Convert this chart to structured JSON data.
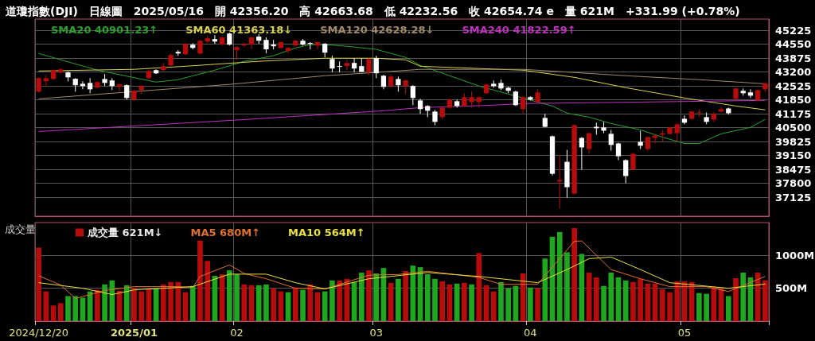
{
  "chart_data": [
    {
      "type": "candlestick",
      "title": "道瓊指數(DJI)　日線圖　2025/05/16　開 42356.20　高 42663.68　低 42232.56　收 42654.74 e　量 621M　+331.99 (+0.78%)",
      "categories": [
        "2024/12/20",
        null,
        null,
        null,
        null,
        null,
        null,
        null,
        null,
        null,
        null,
        null,
        null,
        "2025/01",
        null,
        null,
        null,
        null,
        null,
        null,
        null,
        null,
        null,
        null,
        null,
        null,
        null,
        "02",
        null,
        null,
        null,
        null,
        null,
        null,
        null,
        null,
        null,
        null,
        null,
        null,
        null,
        null,
        null,
        null,
        null,
        null,
        "03",
        null,
        null,
        null,
        null,
        null,
        null,
        null,
        null,
        null,
        null,
        null,
        null,
        null,
        null,
        null,
        null,
        null,
        null,
        null,
        null,
        "04",
        null,
        null,
        null,
        null,
        null,
        null,
        null,
        null,
        null,
        null,
        null,
        null,
        null,
        null,
        null,
        null,
        null,
        null,
        null,
        null,
        "05",
        null,
        null,
        null,
        null,
        null,
        null,
        null,
        null,
        null,
        null,
        null
      ],
      "ylim": [
        36200,
        45770
      ],
      "yticks": [
        37125,
        37800,
        38475,
        39150,
        39825,
        40500,
        41175,
        41850,
        42525,
        43200,
        43875,
        44550,
        45225
      ],
      "grid": true,
      "legend": "top left",
      "tick_labels": "y",
      "marker": "none",
      "series": [
        {
          "colors": [
            "#b80c0c",
            "#b80c0c",
            "#b80c0c",
            "#b80c0c",
            "#ffffff",
            "#ffffff",
            "#ffffff",
            "#ffffff",
            "#b80c0c",
            "#ffffff",
            "#ffffff",
            "#b80c0c",
            "#ffffff",
            "#b80c0c",
            "#b80c0c",
            "#b80c0c",
            "#ffffff",
            "#b80c0c",
            "#b80c0c",
            "#ffffff",
            "#b80c0c",
            "#ffffff",
            "#b80c0c",
            "#b80c0c",
            "#ffffff",
            "#b80c0c",
            "#ffffff",
            "#b80c0c",
            "#b80c0c",
            "#b80c0c",
            "#ffffff",
            "#ffffff",
            "#ffffff",
            "#b80c0c",
            "#b80c0c",
            "#b80c0c",
            "#ffffff",
            "#ffffff",
            "#b80c0c",
            "#ffffff",
            "#ffffff",
            "#ffffff",
            "#b80c0c",
            "#ffffff",
            "#ffffff",
            "#b80c0c",
            "#ffffff",
            "#ffffff",
            "#b80c0c",
            "#ffffff",
            "#b80c0c",
            "#ffffff",
            "#ffffff",
            "#ffffff",
            "#ffffff",
            "#b80c0c",
            "#b80c0c",
            "#ffffff",
            "#b80c0c",
            "#b80c0c",
            "#b80c0c",
            "#b80c0c",
            "#ffffff",
            "#ffffff",
            "#ffffff",
            "#ffffff",
            "#b80c0c",
            "#ffffff",
            "#b80c0c",
            "#ffffff",
            "#ffffff",
            "#b80c0c",
            "#ffffff",
            "#b80c0c",
            "#ffffff",
            "#b80c0c",
            "#ffffff",
            "#ffffff",
            "#ffffff",
            "#ffffff",
            "#ffffff",
            "#b80c0c",
            "#ffffff",
            "#b80c0c",
            "#b80c0c",
            "#b80c0c",
            "#b80c0c",
            "#b80c0c",
            "#ffffff",
            "#b80c0c",
            "#b80c0c",
            "#ffffff",
            "#b80c0c",
            "#b80c0c",
            "#ffffff",
            "#b80c0c",
            "#ffffff",
            "#ffffff",
            "#b80c0c",
            "#b80c0c"
          ],
          "ohlc": [
            [
              42247,
              42943,
              42208,
              42904
            ],
            [
              42750,
              43060,
              42520,
              42900
            ],
            [
              42860,
              43330,
              42830,
              43290
            ],
            [
              43170,
              43370,
              43130,
              43330
            ],
            [
              43180,
              43220,
              42750,
              42940
            ],
            [
              42870,
              42900,
              42250,
              42560
            ],
            [
              42630,
              42750,
              42360,
              42520
            ],
            [
              42670,
              42900,
              42170,
              42360
            ],
            [
              42440,
              42750,
              42400,
              42710
            ],
            [
              42860,
              43100,
              42520,
              42670
            ],
            [
              42790,
              42900,
              42330,
              42520
            ],
            [
              42480,
              42630,
              42250,
              42600
            ],
            [
              42560,
              42600,
              41860,
              41940
            ],
            [
              41860,
              42330,
              41800,
              42290
            ],
            [
              42330,
              42560,
              42130,
              42520
            ],
            [
              42900,
              43290,
              42860,
              43250
            ],
            [
              43290,
              43330,
              43100,
              43140
            ],
            [
              43290,
              43640,
              43250,
              43480
            ],
            [
              43520,
              44100,
              43480,
              44020
            ],
            [
              44180,
              44260,
              43990,
              44100
            ],
            [
              44060,
              44600,
              44020,
              44570
            ],
            [
              44530,
              44600,
              44300,
              44370
            ],
            [
              44100,
              44760,
              44060,
              44720
            ],
            [
              44680,
              44950,
              44610,
              44840
            ],
            [
              44800,
              44990,
              44570,
              44680
            ],
            [
              44530,
              44920,
              44490,
              44880
            ],
            [
              45070,
              45110,
              44490,
              44530
            ],
            [
              44260,
              44450,
              43790,
              44410
            ],
            [
              44490,
              44610,
              44410,
              44570
            ],
            [
              44530,
              44920,
              44300,
              44880
            ],
            [
              44920,
              45030,
              44570,
              44720
            ],
            [
              44760,
              44880,
              44110,
              44300
            ],
            [
              44530,
              44760,
              44300,
              44450
            ],
            [
              44370,
              44680,
              44330,
              44650
            ],
            [
              44220,
              44410,
              44100,
              44370
            ],
            [
              44490,
              44760,
              44450,
              44720
            ],
            [
              44720,
              44800,
              44490,
              44530
            ],
            [
              44610,
              44650,
              44300,
              44570
            ],
            [
              44490,
              44680,
              44300,
              44650
            ],
            [
              44570,
              44610,
              43910,
              44140
            ],
            [
              43830,
              43990,
              43180,
              43370
            ],
            [
              43490,
              43720,
              43180,
              43450
            ],
            [
              43490,
              43790,
              43290,
              43640
            ],
            [
              43640,
              43870,
              43180,
              43370
            ],
            [
              43490,
              43870,
              43210,
              43210
            ],
            [
              43180,
              43870,
              43060,
              43830
            ],
            [
              43870,
              43990,
              42900,
              43140
            ],
            [
              43020,
              43060,
              42360,
              42480
            ],
            [
              42520,
              43060,
              42440,
              42980
            ],
            [
              42860,
              42980,
              42250,
              42560
            ],
            [
              42520,
              42830,
              42130,
              42790
            ],
            [
              42520,
              42560,
              41590,
              41940
            ],
            [
              41820,
              41900,
              41170,
              41400
            ],
            [
              41550,
              41590,
              41010,
              41320
            ],
            [
              41280,
              41360,
              40620,
              40780
            ],
            [
              41010,
              41510,
              40890,
              41470
            ],
            [
              41470,
              41900,
              41430,
              41860
            ],
            [
              41780,
              41860,
              41470,
              41550
            ],
            [
              41550,
              42170,
              41510,
              41980
            ],
            [
              41740,
              42250,
              41470,
              41980
            ],
            [
              41740,
              42020,
              41470,
              41980
            ],
            [
              42170,
              42630,
              42130,
              42590
            ],
            [
              42630,
              42790,
              42440,
              42520
            ],
            [
              42670,
              42830,
              42330,
              42400
            ],
            [
              42440,
              42480,
              42170,
              42290
            ],
            [
              42250,
              42290,
              41550,
              41590
            ],
            [
              41400,
              42020,
              41170,
              41980
            ],
            [
              41980,
              42020,
              41820,
              41860
            ],
            [
              41740,
              42360,
              41700,
              42210
            ],
            [
              40970,
              41170,
              40510,
              40540
            ],
            [
              40080,
              40120,
              38180,
              38260
            ],
            [
              37880,
              39150,
              36560,
              37960
            ],
            [
              38840,
              39420,
              37100,
              37610
            ],
            [
              37300,
              40660,
              37260,
              40620
            ],
            [
              40000,
              40040,
              38460,
              39540
            ],
            [
              39460,
              40270,
              39230,
              40230
            ],
            [
              40540,
              40740,
              40160,
              40470
            ],
            [
              40510,
              40780,
              40230,
              40350
            ],
            [
              40200,
              40390,
              39380,
              39660
            ],
            [
              39730,
              39770,
              38920,
              39110
            ],
            [
              38920,
              38960,
              37800,
              38150
            ],
            [
              38460,
              39270,
              38420,
              39230
            ],
            [
              39810,
              40350,
              39460,
              39620
            ],
            [
              39460,
              40080,
              39350,
              40040
            ],
            [
              40000,
              40160,
              39730,
              40120
            ],
            [
              40160,
              40390,
              39810,
              40230
            ],
            [
              40200,
              40540,
              40160,
              40510
            ],
            [
              40230,
              40700,
              39810,
              40660
            ],
            [
              40930,
              41090,
              40660,
              40740
            ],
            [
              40930,
              41320,
              40890,
              41280
            ],
            [
              41200,
              41400,
              41010,
              41240
            ],
            [
              41010,
              41240,
              40660,
              40780
            ],
            [
              40890,
              41240,
              40780,
              41170
            ],
            [
              41280,
              41510,
              41240,
              41400
            ],
            [
              41430,
              41470,
              41130,
              41200
            ],
            [
              41900,
              42440,
              41860,
              42400
            ],
            [
              42290,
              42400,
              42050,
              42170
            ],
            [
              42210,
              42360,
              41940,
              42050
            ],
            [
              41820,
              42360,
              41790,
              42320
            ],
            [
              42356.2,
              42663.68,
              42232.56,
              42654.74
            ]
          ]
        },
        {
          "type": "line",
          "name": "SMA20 40901.23↑",
          "color": "#2ca02c",
          "values": [
            44100,
            null,
            null,
            null,
            null,
            null,
            null,
            null,
            43290,
            null,
            null,
            null,
            null,
            null,
            null,
            null,
            42710,
            null,
            null,
            42830,
            null,
            null,
            null,
            null,
            43290,
            null,
            null,
            null,
            43720,
            null,
            null,
            null,
            43990,
            null,
            null,
            44370,
            null,
            44530,
            null,
            44530,
            null,
            null,
            44450,
            null,
            null,
            null,
            44300,
            null,
            null,
            null,
            43910,
            null,
            43520,
            null,
            null,
            null,
            43020,
            null,
            null,
            null,
            42520,
            null,
            null,
            null,
            42130,
            null,
            null,
            null,
            41740,
            null,
            41550,
            null,
            41200,
            null,
            null,
            41010,
            null,
            null,
            40700,
            null,
            null,
            null,
            40390,
            null,
            null,
            40040,
            null,
            null,
            39730,
            null,
            39730,
            null,
            null,
            40200,
            null,
            null,
            null,
            40510,
            null,
            40901.23
          ]
        },
        {
          "type": "line",
          "name": "SMA60 41363.18↓",
          "color": "#d8d050",
          "values": [
            43250,
            null,
            null,
            null,
            null,
            null,
            null,
            null,
            null,
            null,
            null,
            null,
            null,
            43330,
            null,
            null,
            null,
            null,
            null,
            null,
            43480,
            null,
            null,
            null,
            null,
            null,
            null,
            null,
            null,
            null,
            43720,
            null,
            null,
            null,
            null,
            null,
            null,
            null,
            null,
            43870,
            null,
            null,
            null,
            null,
            null,
            null,
            43870,
            null,
            null,
            null,
            43790,
            null,
            43480,
            null,
            null,
            null,
            null,
            null,
            null,
            null,
            43370,
            null,
            null,
            null,
            null,
            null,
            43290,
            null,
            null,
            null,
            null,
            null,
            null,
            42940,
            null,
            null,
            null,
            null,
            null,
            null,
            42440,
            null,
            null,
            null,
            null,
            null,
            null,
            null,
            41940,
            null,
            null,
            null,
            null,
            null,
            null,
            41550,
            null,
            null,
            null,
            41363.18
          ]
        },
        {
          "type": "line",
          "name": "SMA120 42628.28↓",
          "color": "#a08868",
          "values": [
            41900,
            null,
            null,
            null,
            null,
            null,
            null,
            null,
            null,
            null,
            null,
            null,
            null,
            42250,
            null,
            null,
            null,
            null,
            null,
            null,
            null,
            null,
            null,
            null,
            null,
            null,
            42600,
            null,
            null,
            null,
            null,
            null,
            null,
            null,
            null,
            null,
            null,
            null,
            null,
            43020,
            null,
            null,
            null,
            null,
            null,
            null,
            43180,
            null,
            null,
            null,
            null,
            null,
            43330,
            null,
            null,
            null,
            null,
            null,
            null,
            null,
            null,
            null,
            null,
            null,
            null,
            null,
            43330,
            null,
            null,
            null,
            null,
            null,
            null,
            null,
            null,
            null,
            null,
            null,
            null,
            null,
            43020,
            null,
            null,
            null,
            null,
            null,
            null,
            null,
            null,
            null,
            42830,
            null,
            null,
            null,
            null,
            null,
            null,
            null,
            null,
            42628.28
          ]
        },
        {
          "type": "line",
          "name": "SMA240 41822.59↑",
          "color": "#c030c0",
          "values": [
            40310,
            null,
            null,
            null,
            null,
            null,
            null,
            null,
            null,
            null,
            null,
            null,
            null,
            40580,
            null,
            null,
            null,
            null,
            null,
            null,
            null,
            null,
            null,
            null,
            null,
            null,
            null,
            null,
            40890,
            null,
            null,
            null,
            null,
            null,
            null,
            null,
            null,
            null,
            null,
            null,
            null,
            null,
            null,
            null,
            null,
            null,
            null,
            41320,
            null,
            null,
            null,
            null,
            41470,
            null,
            null,
            null,
            null,
            null,
            null,
            null,
            null,
            null,
            41590,
            null,
            null,
            null,
            41670,
            null,
            null,
            null,
            null,
            null,
            null,
            null,
            null,
            null,
            null,
            null,
            null,
            null,
            null,
            null,
            41740,
            null,
            null,
            null,
            null,
            null,
            null,
            null,
            null,
            null,
            null,
            null,
            null,
            null,
            null,
            null,
            null,
            41822.59
          ]
        }
      ]
    },
    {
      "type": "bar",
      "ylabel": "成交量",
      "categories": [
        "2024/12/20",
        null,
        null,
        null,
        null,
        null,
        null,
        null,
        null,
        null,
        null,
        null,
        null,
        "2025/01",
        null,
        null,
        null,
        null,
        null,
        null,
        null,
        null,
        null,
        null,
        null,
        null,
        null,
        "02",
        null,
        null,
        null,
        null,
        null,
        null,
        null,
        null,
        null,
        null,
        null,
        null,
        null,
        null,
        null,
        null,
        null,
        null,
        "03",
        null,
        null,
        null,
        null,
        null,
        null,
        null,
        null,
        null,
        null,
        null,
        null,
        null,
        null,
        null,
        null,
        null,
        null,
        null,
        null,
        "04",
        null,
        null,
        null,
        null,
        null,
        null,
        null,
        null,
        null,
        null,
        null,
        null,
        null,
        null,
        null,
        null,
        null,
        null,
        null,
        null,
        "05",
        null,
        null,
        null,
        null,
        null,
        null,
        null,
        null,
        null,
        null,
        null
      ],
      "ylim": [
        0,
        1500
      ],
      "yticks": [
        {
          "value": 500,
          "label": "500M"
        },
        {
          "value": 1000,
          "label": "1000M"
        }
      ],
      "grid": true,
      "legend": "top left",
      "marker": "none",
      "series": [
        {
          "name": "成交量 621M↓",
          "values": [
            1119,
            452,
            238,
            274,
            381,
            381,
            357,
            452,
            476,
            559,
            619,
            464,
            547,
            500,
            452,
            488,
            500,
            559,
            595,
            595,
            440,
            536,
            1226,
            916,
            690,
            714,
            773,
            714,
            559,
            547,
            547,
            559,
            500,
            452,
            440,
            512,
            476,
            559,
            440,
            452,
            619,
            619,
            643,
            595,
            738,
            773,
            726,
            809,
            583,
            643,
            762,
            845,
            821,
            714,
            643,
            607,
            559,
            571,
            583,
            559,
            1035,
            547,
            452,
            595,
            500,
            536,
            726,
            512,
            500,
            952,
            1285,
            1357,
            1047,
            1416,
            1023,
            738,
            666,
            536,
            738,
            666,
            619,
            595,
            643,
            571,
            571,
            488,
            440,
            607,
            607,
            595,
            428,
            416,
            524,
            500,
            381,
            655,
            738,
            666,
            738,
            621
          ],
          "colors": [
            "#b80c0c",
            "#b80c0c",
            "#b80c0c",
            "#b80c0c",
            "#1fa81f",
            "#1fa81f",
            "#1fa81f",
            "#1fa81f",
            "#b80c0c",
            "#1fa81f",
            "#1fa81f",
            "#b80c0c",
            "#1fa81f",
            "#b80c0c",
            "#b80c0c",
            "#b80c0c",
            "#1fa81f",
            "#b80c0c",
            "#b80c0c",
            "#b80c0c",
            "#b80c0c",
            "#1fa81f",
            "#b80c0c",
            "#b80c0c",
            "#1fa81f",
            "#b80c0c",
            "#1fa81f",
            "#1fa81f",
            "#b80c0c",
            "#b80c0c",
            "#1fa81f",
            "#1fa81f",
            "#b80c0c",
            "#b80c0c",
            "#1fa81f",
            "#b80c0c",
            "#1fa81f",
            "#b80c0c",
            "#b80c0c",
            "#1fa81f",
            "#1fa81f",
            "#b80c0c",
            "#b80c0c",
            "#1fa81f",
            "#1fa81f",
            "#b80c0c",
            "#1fa81f",
            "#1fa81f",
            "#b80c0c",
            "#1fa81f",
            "#b80c0c",
            "#1fa81f",
            "#1fa81f",
            "#1fa81f",
            "#1fa81f",
            "#b80c0c",
            "#b80c0c",
            "#1fa81f",
            "#b80c0c",
            "#1fa81f",
            "#b80c0c",
            "#b80c0c",
            "#b80c0c",
            "#1fa81f",
            "#1fa81f",
            "#1fa81f",
            "#b80c0c",
            "#1fa81f",
            "#b80c0c",
            "#1fa81f",
            "#1fa81f",
            "#1fa81f",
            "#1fa81f",
            "#b80c0c",
            "#1fa81f",
            "#b80c0c",
            "#b80c0c",
            "#1fa81f",
            "#1fa81f",
            "#1fa81f",
            "#1fa81f",
            "#b80c0c",
            "#b80c0c",
            "#b80c0c",
            "#b80c0c",
            "#b80c0c",
            "#b80c0c",
            "#b80c0c",
            "#b80c0c",
            "#b80c0c",
            "#1fa81f",
            "#1fa81f",
            "#b80c0c",
            "#b80c0c",
            "#1fa81f",
            "#b80c0c",
            "#1fa81f",
            "#1fa81f",
            "#b80c0c",
            "#b80c0c"
          ]
        },
        {
          "type": "line",
          "name": "MA5 680M↑",
          "color": "#e07030",
          "values": [
            690,
            null,
            null,
            550,
            null,
            345,
            null,
            null,
            null,
            465,
            null,
            null,
            null,
            525,
            null,
            null,
            null,
            null,
            null,
            525,
            null,
            515,
            680,
            null,
            null,
            null,
            855,
            null,
            725,
            null,
            null,
            645,
            null,
            null,
            null,
            500,
            null,
            null,
            null,
            490,
            null,
            null,
            null,
            null,
            null,
            700,
            null,
            null,
            null,
            710,
            null,
            null,
            null,
            760,
            null,
            null,
            null,
            null,
            null,
            null,
            665,
            null,
            null,
            560,
            null,
            null,
            null,
            null,
            560,
            null,
            null,
            null,
            null,
            1215,
            1220,
            null,
            null,
            null,
            785,
            null,
            null,
            null,
            645,
            null,
            null,
            null,
            525,
            null,
            null,
            null,
            null,
            525,
            null,
            null,
            450,
            null,
            null,
            null,
            null,
            680
          ]
        },
        {
          "type": "line",
          "name": "MA10 564M↑",
          "color": "#e8e040",
          "values": [
            585,
            null,
            null,
            null,
            null,
            null,
            500,
            null,
            null,
            null,
            405,
            null,
            null,
            475,
            null,
            null,
            null,
            null,
            null,
            null,
            null,
            525,
            null,
            null,
            null,
            null,
            715,
            null,
            null,
            null,
            null,
            715,
            null,
            null,
            null,
            585,
            null,
            null,
            null,
            490,
            null,
            null,
            null,
            null,
            null,
            645,
            null,
            null,
            null,
            null,
            null,
            null,
            null,
            740,
            null,
            null,
            null,
            null,
            null,
            null,
            680,
            null,
            null,
            null,
            null,
            null,
            null,
            null,
            585,
            null,
            null,
            null,
            785,
            null,
            null,
            950,
            null,
            null,
            975,
            null,
            null,
            null,
            785,
            null,
            null,
            null,
            585,
            null,
            null,
            null,
            null,
            null,
            null,
            null,
            500,
            null,
            null,
            null,
            null,
            564
          ]
        }
      ]
    }
  ]
}
